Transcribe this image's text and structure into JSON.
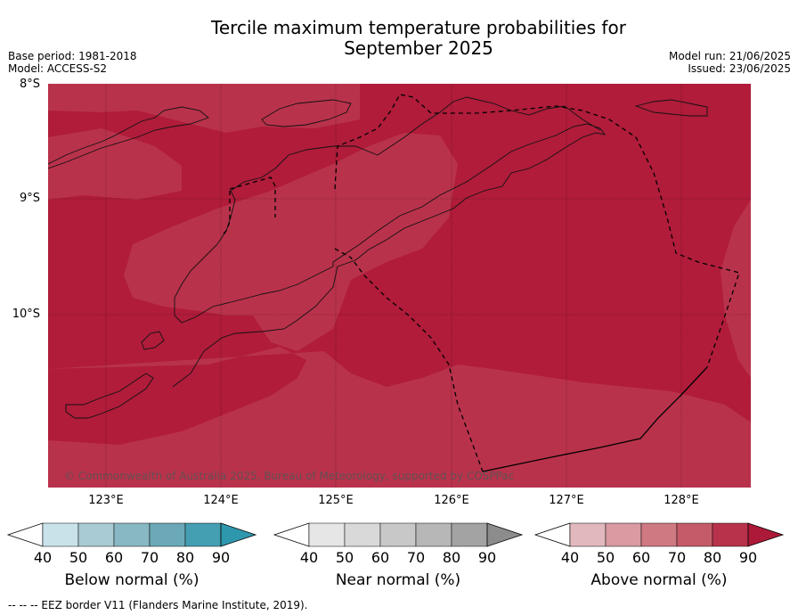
{
  "title_line1": "Tercile maximum temperature probabilities for",
  "title_line2": "September 2025",
  "meta_left": [
    "Base period: 1981-2018",
    "Model: ACCESS-S2"
  ],
  "meta_right": [
    "Model run: 21/06/2025",
    "Issued: 23/06/2025"
  ],
  "lat_labels": [
    "8°S",
    "9°S",
    "10°S"
  ],
  "lon_labels": [
    "123°E",
    "124°E",
    "125°E",
    "126°E",
    "127°E",
    "128°E"
  ],
  "copyright": "© Commonwealth of Australia 2025, Bureau of Meteorology, supported by COSPPac",
  "colorbars": [
    {
      "label": "Below normal (%)",
      "colors": [
        "#c9e2ea",
        "#a9cbd3",
        "#88b8c3",
        "#6ba9b8",
        "#459fb3"
      ],
      "arrow_high": "#2f97ad",
      "ticks": [
        "40",
        "50",
        "60",
        "70",
        "80",
        "90"
      ]
    },
    {
      "label": "Near normal (%)",
      "colors": [
        "#e6e6e6",
        "#d9d9d9",
        "#c8c8c8",
        "#b7b7b7",
        "#a3a3a3"
      ],
      "arrow_high": "#8c8c8c",
      "ticks": [
        "40",
        "50",
        "60",
        "70",
        "80",
        "90"
      ]
    },
    {
      "label": "Above normal (%)",
      "colors": [
        "#e1b8be",
        "#d99aa2",
        "#cf7982",
        "#c55b68",
        "#b9324b"
      ],
      "arrow_high": "#ad1938",
      "ticks": [
        "40",
        "50",
        "60",
        "70",
        "80",
        "90"
      ]
    }
  ],
  "map_colors": {
    "band_80_90": "#b9324b",
    "band_90": "#b01c3a"
  },
  "footer": "--  --  -- EEZ border V11 (Flanders Marine Institute, 2019)."
}
